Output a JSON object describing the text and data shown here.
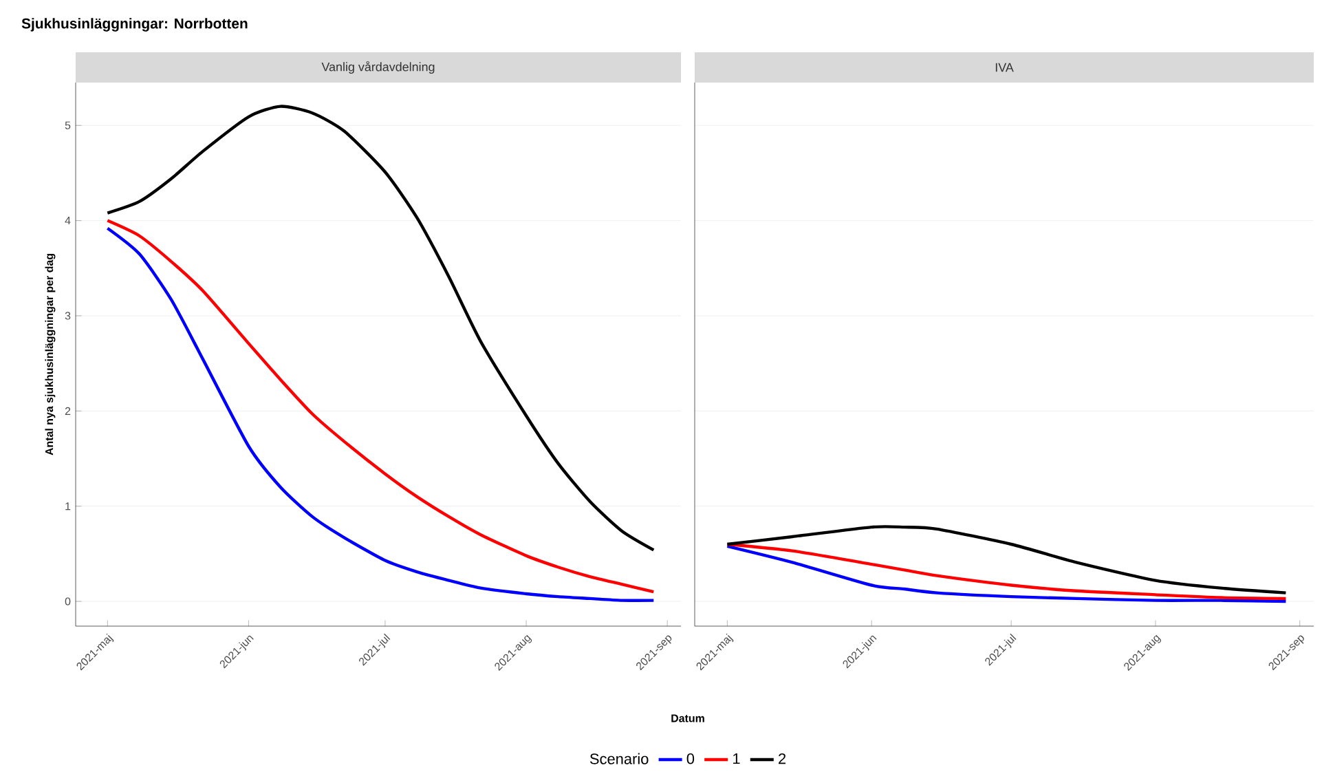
{
  "chart_data": [
    {
      "type": "line",
      "title": "Sjukhusinläggningar:  Norrbotten",
      "subtitle": "Vanlig vårdavdelning",
      "xlabel": "Datum",
      "ylabel": "Antal nya sjukhusinläggningar per dag",
      "legend_title": "Scenario",
      "legend": "bottom",
      "grid": "y",
      "x": [
        "2021-05-01",
        "2021-05-08",
        "2021-05-15",
        "2021-05-22",
        "2021-06-01",
        "2021-06-08",
        "2021-06-15",
        "2021-06-22",
        "2021-07-01",
        "2021-07-08",
        "2021-07-15",
        "2021-07-22",
        "2021-08-01",
        "2021-08-08",
        "2021-08-15",
        "2021-08-22",
        "2021-08-29"
      ],
      "xlim": [
        "2021-04-24",
        "2021-09-04"
      ],
      "xticks": [
        {
          "value": "2021-05-01",
          "label": "2021-maj"
        },
        {
          "value": "2021-06-01",
          "label": "2021-jun"
        },
        {
          "value": "2021-07-01",
          "label": "2021-jul"
        },
        {
          "value": "2021-08-01",
          "label": "2021-aug"
        },
        {
          "value": "2021-09-01",
          "label": "2021-sep"
        }
      ],
      "ylim": [
        -0.26,
        5.45
      ],
      "yticks": [
        0,
        1,
        2,
        3,
        4,
        5
      ],
      "series": [
        {
          "name": "0",
          "color": "#0000ff",
          "values": [
            3.92,
            3.65,
            3.17,
            2.54,
            1.63,
            1.2,
            0.89,
            0.67,
            0.43,
            0.31,
            0.22,
            0.14,
            0.08,
            0.05,
            0.03,
            0.01,
            0.01
          ]
        },
        {
          "name": "1",
          "color": "#ff0000",
          "values": [
            4.0,
            3.84,
            3.57,
            3.26,
            2.71,
            2.33,
            1.97,
            1.68,
            1.34,
            1.1,
            0.89,
            0.7,
            0.48,
            0.36,
            0.26,
            0.18,
            0.1
          ]
        },
        {
          "name": "2",
          "color": "#000000",
          "values": [
            4.08,
            4.2,
            4.44,
            4.73,
            5.09,
            5.2,
            5.13,
            4.94,
            4.51,
            4.03,
            3.41,
            2.73,
            1.95,
            1.45,
            1.05,
            0.74,
            0.54
          ]
        }
      ]
    },
    {
      "type": "line",
      "subtitle": "IVA",
      "grid": "y",
      "tick_labels": "x",
      "x": [
        "2021-05-01",
        "2021-05-15",
        "2021-06-01",
        "2021-06-08",
        "2021-06-15",
        "2021-07-01",
        "2021-07-15",
        "2021-08-01",
        "2021-08-15",
        "2021-08-29"
      ],
      "xlim": [
        "2021-04-24",
        "2021-09-04"
      ],
      "xticks": [
        {
          "value": "2021-05-01",
          "label": "2021-maj"
        },
        {
          "value": "2021-06-01",
          "label": "2021-jun"
        },
        {
          "value": "2021-07-01",
          "label": "2021-jul"
        },
        {
          "value": "2021-08-01",
          "label": "2021-aug"
        },
        {
          "value": "2021-09-01",
          "label": "2021-sep"
        }
      ],
      "ylim": [
        -0.26,
        5.45
      ],
      "yticks": [
        0,
        1,
        2,
        3,
        4,
        5
      ],
      "series": [
        {
          "color": "#0000ff",
          "values": [
            0.58,
            0.41,
            0.17,
            0.13,
            0.09,
            0.05,
            0.03,
            0.01,
            0.01,
            0.0
          ]
        },
        {
          "color": "#ff0000",
          "values": [
            0.6,
            0.53,
            0.39,
            0.33,
            0.27,
            0.17,
            0.11,
            0.07,
            0.04,
            0.03
          ]
        },
        {
          "color": "#000000",
          "values": [
            0.6,
            0.68,
            0.78,
            0.78,
            0.76,
            0.6,
            0.41,
            0.22,
            0.14,
            0.09
          ]
        }
      ]
    }
  ]
}
